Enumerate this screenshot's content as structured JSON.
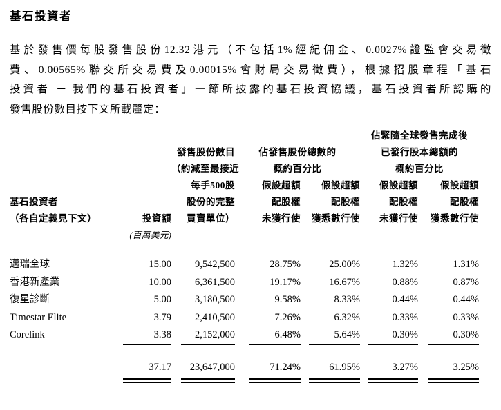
{
  "page": {
    "title": "基石投資者"
  },
  "intro": {
    "lines": [
      "基於發售價每股發售股份12.32港元（不包括1%經紀佣金、0.0027%證監會交易徵",
      "費、0.00565%聯交所交易費及0.00015%會財局交易徵費），根據招股章程「基石",
      "投資者 － 我們的基石投資者」一節所披露的基石投資協議，基石投資者所認購的",
      "發售股份數目按下文所載釐定："
    ]
  },
  "table": {
    "header": {
      "investor_line1": "基石投資者",
      "investor_line2": "（各自定義見下文）",
      "investment_label": "投資額",
      "investment_unit": "(百萬美元)",
      "shares_lines": [
        "發售股份數目",
        "（約減至最接近",
        "每手500股",
        "股份的完整",
        "買賣單位）"
      ],
      "offer_pct_group": [
        "佔發售股份總數的",
        "概約百分比"
      ],
      "capital_pct_group": [
        "佔緊隨全球發售完成後",
        "已發行股本總額的",
        "概約百分比"
      ],
      "sub_no_exercise": [
        "假設超額",
        "配股權",
        "未獲行使"
      ],
      "sub_full_exercise": [
        "假設超額",
        "配股權",
        "獲悉數行使"
      ]
    },
    "rows": [
      {
        "name": "邁瑞全球",
        "investment": "15.00",
        "shares": "9,542,500",
        "pct_offer_no": "28.75%",
        "pct_offer_full": "25.00%",
        "pct_cap_no": "1.32%",
        "pct_cap_full": "1.31%"
      },
      {
        "name": "香港新產業",
        "investment": "10.00",
        "shares": "6,361,500",
        "pct_offer_no": "19.17%",
        "pct_offer_full": "16.67%",
        "pct_cap_no": "0.88%",
        "pct_cap_full": "0.87%"
      },
      {
        "name": "復星診斷",
        "investment": "5.00",
        "shares": "3,180,500",
        "pct_offer_no": "9.58%",
        "pct_offer_full": "8.33%",
        "pct_cap_no": "0.44%",
        "pct_cap_full": "0.44%"
      },
      {
        "name": "Timestar Elite",
        "investment": "3.79",
        "shares": "2,410,500",
        "pct_offer_no": "7.26%",
        "pct_offer_full": "6.32%",
        "pct_cap_no": "0.33%",
        "pct_cap_full": "0.33%"
      },
      {
        "name": "Corelink",
        "investment": "3.38",
        "shares": "2,152,000",
        "pct_offer_no": "6.48%",
        "pct_offer_full": "5.64%",
        "pct_cap_no": "0.30%",
        "pct_cap_full": "0.30%"
      }
    ],
    "total": {
      "investment": "37.17",
      "shares": "23,647,000",
      "pct_offer_no": "71.24%",
      "pct_offer_full": "61.95%",
      "pct_cap_no": "3.27%",
      "pct_cap_full": "3.25%"
    }
  }
}
